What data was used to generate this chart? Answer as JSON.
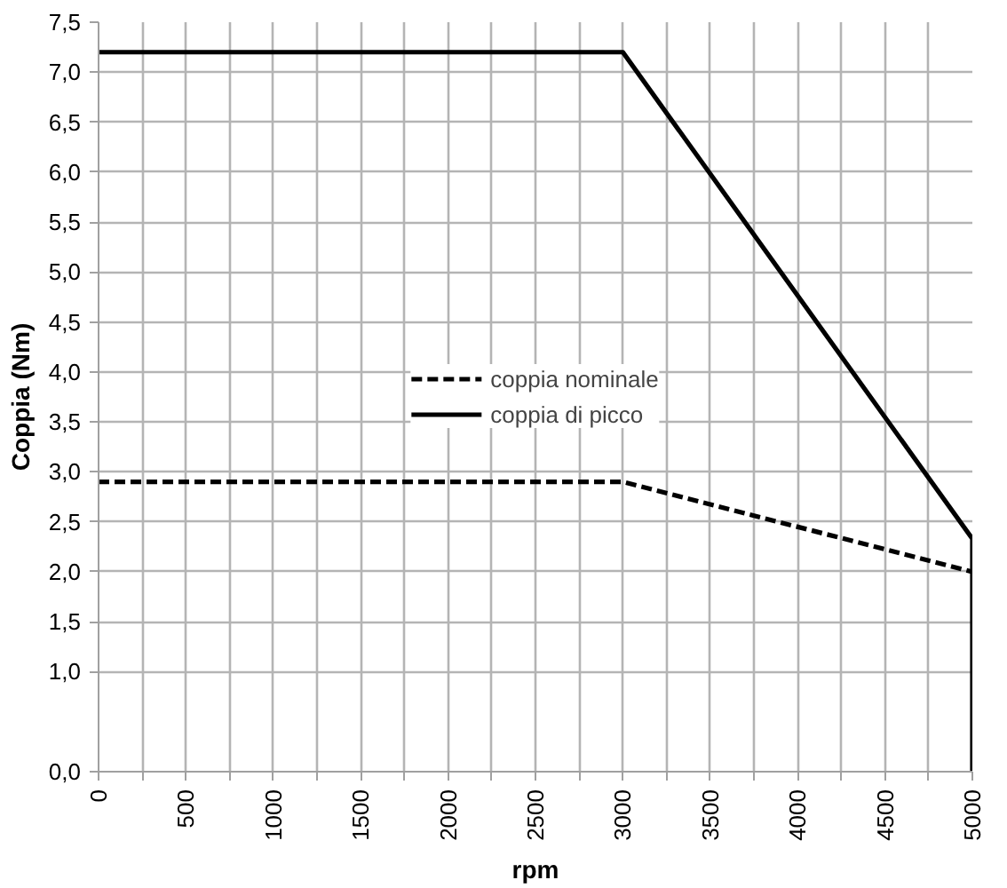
{
  "chart_data": {
    "type": "line",
    "xlabel": "rpm",
    "ylabel": "Coppia (Nm)",
    "series": [
      {
        "name": "coppia nominale",
        "color": "#000000",
        "line_style": "dashed",
        "x": [
          0,
          3000,
          5000
        ],
        "values": [
          2.9,
          2.9,
          2.0
        ]
      },
      {
        "name": "coppia di picco",
        "color": "#000000",
        "line_style": "solid",
        "x": [
          0,
          3000,
          5000,
          5000
        ],
        "values": [
          7.2,
          7.2,
          2.33,
          0
        ]
      }
    ],
    "xlim": [
      0,
      5000
    ],
    "xticks": [
      0,
      {
        "value": 250,
        "label": null
      },
      500,
      {
        "value": 750,
        "label": null
      },
      1000,
      {
        "value": 1250,
        "label": null
      },
      1500,
      {
        "value": 1750,
        "label": null
      },
      2000,
      {
        "value": 2250,
        "label": null
      },
      2500,
      {
        "value": 2750,
        "label": null
      },
      3000,
      {
        "value": 3250,
        "label": null
      },
      3500,
      {
        "value": 3750,
        "label": null
      },
      4000,
      {
        "value": 4250,
        "label": null
      },
      4500,
      {
        "value": 4750,
        "label": null
      },
      5000
    ],
    "ylim": [
      0,
      7.5
    ],
    "yticks": [
      {
        "value": 0,
        "label": "0,0"
      },
      {
        "value": 1.0,
        "label": "1,0"
      },
      {
        "value": 1.5,
        "label": "1,5"
      },
      {
        "value": 2.0,
        "label": "2,0"
      },
      {
        "value": 2.5,
        "label": "2,5"
      },
      {
        "value": 3.0,
        "label": "3,0"
      },
      {
        "value": 3.5,
        "label": "3,5"
      },
      {
        "value": 4.0,
        "label": "4,0"
      },
      {
        "value": 4.5,
        "label": "4,5"
      },
      {
        "value": 5.0,
        "label": "5,0"
      },
      {
        "value": 5.5,
        "label": "5,5"
      },
      {
        "value": 6.0,
        "label": "6,0"
      },
      {
        "value": 6.5,
        "label": "6,5"
      },
      {
        "value": 7.0,
        "label": "7,0"
      },
      {
        "value": 7.5,
        "label": "7,5"
      }
    ],
    "grid": true,
    "legend": "center",
    "marker": "none"
  }
}
